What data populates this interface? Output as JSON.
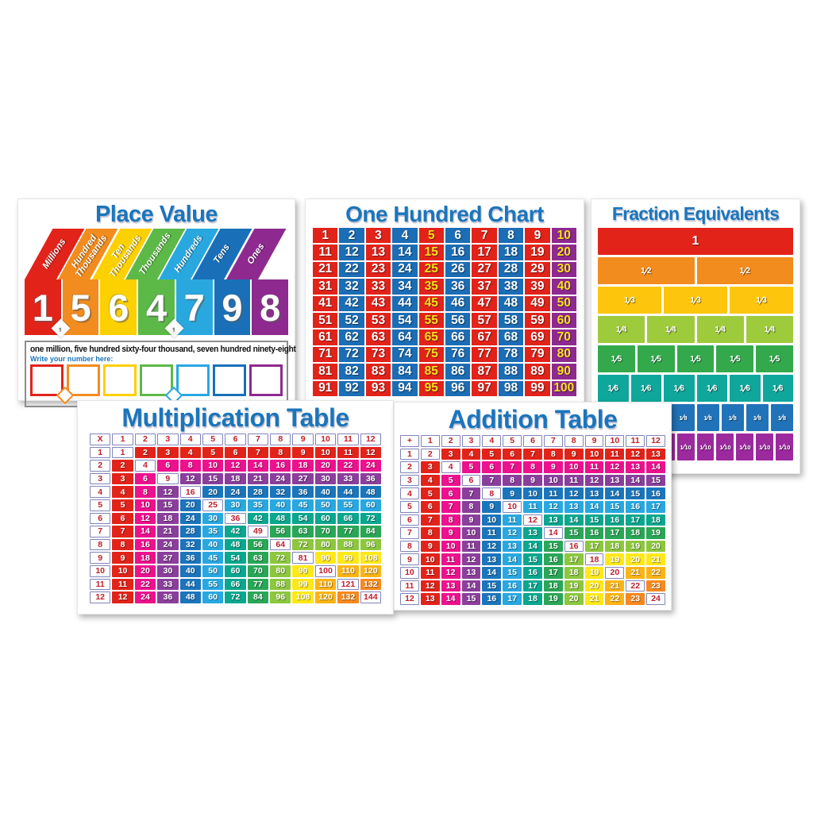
{
  "palette": {
    "title_blue": "#1b75bc",
    "card_background": "#ffffff",
    "header_border": "#8184ba",
    "header_text_red": "#c22027",
    "frame_border_gray": "#8c8c8c"
  },
  "chart_data": [
    {
      "type": "table",
      "id": "place_value",
      "title": "Place Value",
      "columns": [
        {
          "label": "Millions",
          "digit": "1",
          "color": "#e2231a",
          "comma_after": true,
          "comma_box_color": "#f28c1e"
        },
        {
          "label": "Hundred\nThousands",
          "digit": "5",
          "color": "#f28c1e"
        },
        {
          "label": "Ten\nThousands",
          "digit": "6",
          "color": "#fdd000"
        },
        {
          "label": "Thousands",
          "digit": "4",
          "color": "#5cb947",
          "comma_after": true,
          "comma_box_color": "#29a8e0"
        },
        {
          "label": "Hundreds",
          "digit": "7",
          "color": "#29a8e0"
        },
        {
          "label": "Tens",
          "digit": "9",
          "color": "#1a70b8"
        },
        {
          "label": "Ones",
          "digit": "8",
          "color": "#8e2a8f"
        }
      ],
      "number_words": "one million, five hundred sixty-four thousand, seven hundred ninety-eight",
      "write_label": "Write your number here:",
      "comma_glyph": ","
    },
    {
      "type": "table",
      "id": "hundred_chart",
      "title": "One Hundred Chart",
      "rows": 10,
      "cols": 10,
      "values": [
        1,
        2,
        3,
        4,
        5,
        6,
        7,
        8,
        9,
        10,
        11,
        12,
        13,
        14,
        15,
        16,
        17,
        18,
        19,
        20,
        21,
        22,
        23,
        24,
        25,
        26,
        27,
        28,
        29,
        30,
        31,
        32,
        33,
        34,
        35,
        36,
        37,
        38,
        39,
        40,
        41,
        42,
        43,
        44,
        45,
        46,
        47,
        48,
        49,
        50,
        51,
        52,
        53,
        54,
        55,
        56,
        57,
        58,
        59,
        60,
        61,
        62,
        63,
        64,
        65,
        66,
        67,
        68,
        69,
        70,
        71,
        72,
        73,
        74,
        75,
        76,
        77,
        78,
        79,
        80,
        81,
        82,
        83,
        84,
        85,
        86,
        87,
        88,
        89,
        90,
        91,
        92,
        93,
        94,
        95,
        96,
        97,
        98,
        99,
        100
      ],
      "colors": {
        "odd_bg": "#e2231a",
        "even_bg": "#1b6db5",
        "tens_col_bg": "#8e2a8f",
        "text": "#ffffff",
        "multiple_of_5_text": "#f9e11e"
      }
    },
    {
      "type": "table",
      "id": "fraction_equivalents",
      "title": "Fraction Equivalents",
      "bars": [
        {
          "label": "1",
          "parts": 1,
          "color": "#e2231a"
        },
        {
          "num": "1",
          "den": "2",
          "parts": 2,
          "color": "#f28c1e"
        },
        {
          "num": "1",
          "den": "3",
          "parts": 3,
          "color": "#fdc50b"
        },
        {
          "num": "1",
          "den": "4",
          "parts": 4,
          "color": "#9ecb3b"
        },
        {
          "num": "1",
          "den": "5",
          "parts": 5,
          "color": "#33a94c"
        },
        {
          "num": "1",
          "den": "6",
          "parts": 6,
          "color": "#0fa79b"
        },
        {
          "num": "1",
          "den": "8",
          "parts": 8,
          "color": "#2173b9"
        },
        {
          "num": "1",
          "den": "10",
          "parts": 10,
          "color": "#9c2a9e"
        }
      ]
    },
    {
      "type": "table",
      "id": "multiplication_table",
      "title": "Multiplication Table",
      "operator": "X",
      "headers": [
        1,
        2,
        3,
        4,
        5,
        6,
        7,
        8,
        9,
        10,
        11,
        12
      ],
      "values": [
        [
          1,
          2,
          3,
          4,
          5,
          6,
          7,
          8,
          9,
          10,
          11,
          12
        ],
        [
          2,
          4,
          6,
          8,
          10,
          12,
          14,
          16,
          18,
          20,
          22,
          24
        ],
        [
          3,
          6,
          9,
          12,
          15,
          18,
          21,
          24,
          27,
          30,
          33,
          36
        ],
        [
          4,
          8,
          12,
          16,
          20,
          24,
          28,
          32,
          36,
          40,
          44,
          48
        ],
        [
          5,
          10,
          15,
          20,
          25,
          30,
          35,
          40,
          45,
          50,
          55,
          60
        ],
        [
          6,
          12,
          18,
          24,
          30,
          36,
          42,
          48,
          54,
          60,
          66,
          72
        ],
        [
          7,
          14,
          21,
          28,
          35,
          42,
          49,
          56,
          63,
          70,
          77,
          84
        ],
        [
          8,
          16,
          24,
          32,
          40,
          48,
          56,
          64,
          72,
          80,
          88,
          96
        ],
        [
          9,
          18,
          27,
          36,
          45,
          54,
          63,
          72,
          81,
          90,
          99,
          108
        ],
        [
          10,
          20,
          30,
          40,
          50,
          60,
          70,
          80,
          90,
          100,
          110,
          120
        ],
        [
          11,
          22,
          33,
          44,
          55,
          66,
          77,
          88,
          99,
          110,
          121,
          132
        ],
        [
          12,
          24,
          36,
          48,
          60,
          72,
          84,
          96,
          108,
          120,
          132,
          144
        ]
      ],
      "band_colors": [
        "#e2231a",
        "#ec118d",
        "#8a3f9b",
        "#1b75bb",
        "#29a8e0",
        "#0aa78f",
        "#2aa657",
        "#8dc63f",
        "#ffe81a",
        "#fcb415",
        "#f6891f",
        "#e2231a"
      ],
      "diagonal_cell": {
        "background": "#ffffff",
        "text": "#bf1e2e"
      }
    },
    {
      "type": "table",
      "id": "addition_table",
      "title": "Addition Table",
      "operator": "+",
      "headers": [
        1,
        2,
        3,
        4,
        5,
        6,
        7,
        8,
        9,
        10,
        11,
        12
      ],
      "values": [
        [
          2,
          3,
          4,
          5,
          6,
          7,
          8,
          9,
          10,
          11,
          12,
          13
        ],
        [
          3,
          4,
          5,
          6,
          7,
          8,
          9,
          10,
          11,
          12,
          13,
          14
        ],
        [
          4,
          5,
          6,
          7,
          8,
          9,
          10,
          11,
          12,
          13,
          14,
          15
        ],
        [
          5,
          6,
          7,
          8,
          9,
          10,
          11,
          12,
          13,
          14,
          15,
          16
        ],
        [
          6,
          7,
          8,
          9,
          10,
          11,
          12,
          13,
          14,
          15,
          16,
          17
        ],
        [
          7,
          8,
          9,
          10,
          11,
          12,
          13,
          14,
          15,
          16,
          17,
          18
        ],
        [
          8,
          9,
          10,
          11,
          12,
          13,
          14,
          15,
          16,
          17,
          18,
          19
        ],
        [
          9,
          10,
          11,
          12,
          13,
          14,
          15,
          16,
          17,
          18,
          19,
          20
        ],
        [
          10,
          11,
          12,
          13,
          14,
          15,
          16,
          17,
          18,
          19,
          20,
          21
        ],
        [
          11,
          12,
          13,
          14,
          15,
          16,
          17,
          18,
          19,
          20,
          21,
          22
        ],
        [
          12,
          13,
          14,
          15,
          16,
          17,
          18,
          19,
          20,
          21,
          22,
          23
        ],
        [
          13,
          14,
          15,
          16,
          17,
          18,
          19,
          20,
          21,
          22,
          23,
          24
        ]
      ],
      "band_colors": [
        "#e2231a",
        "#ec118d",
        "#8a3f9b",
        "#1b75bb",
        "#29a8e0",
        "#0aa78f",
        "#2aa657",
        "#8dc63f",
        "#ffe81a",
        "#fcb415",
        "#f6891f",
        "#e2231a"
      ],
      "diagonal_cell": {
        "background": "#ffffff",
        "text": "#bf1e2e"
      }
    }
  ]
}
